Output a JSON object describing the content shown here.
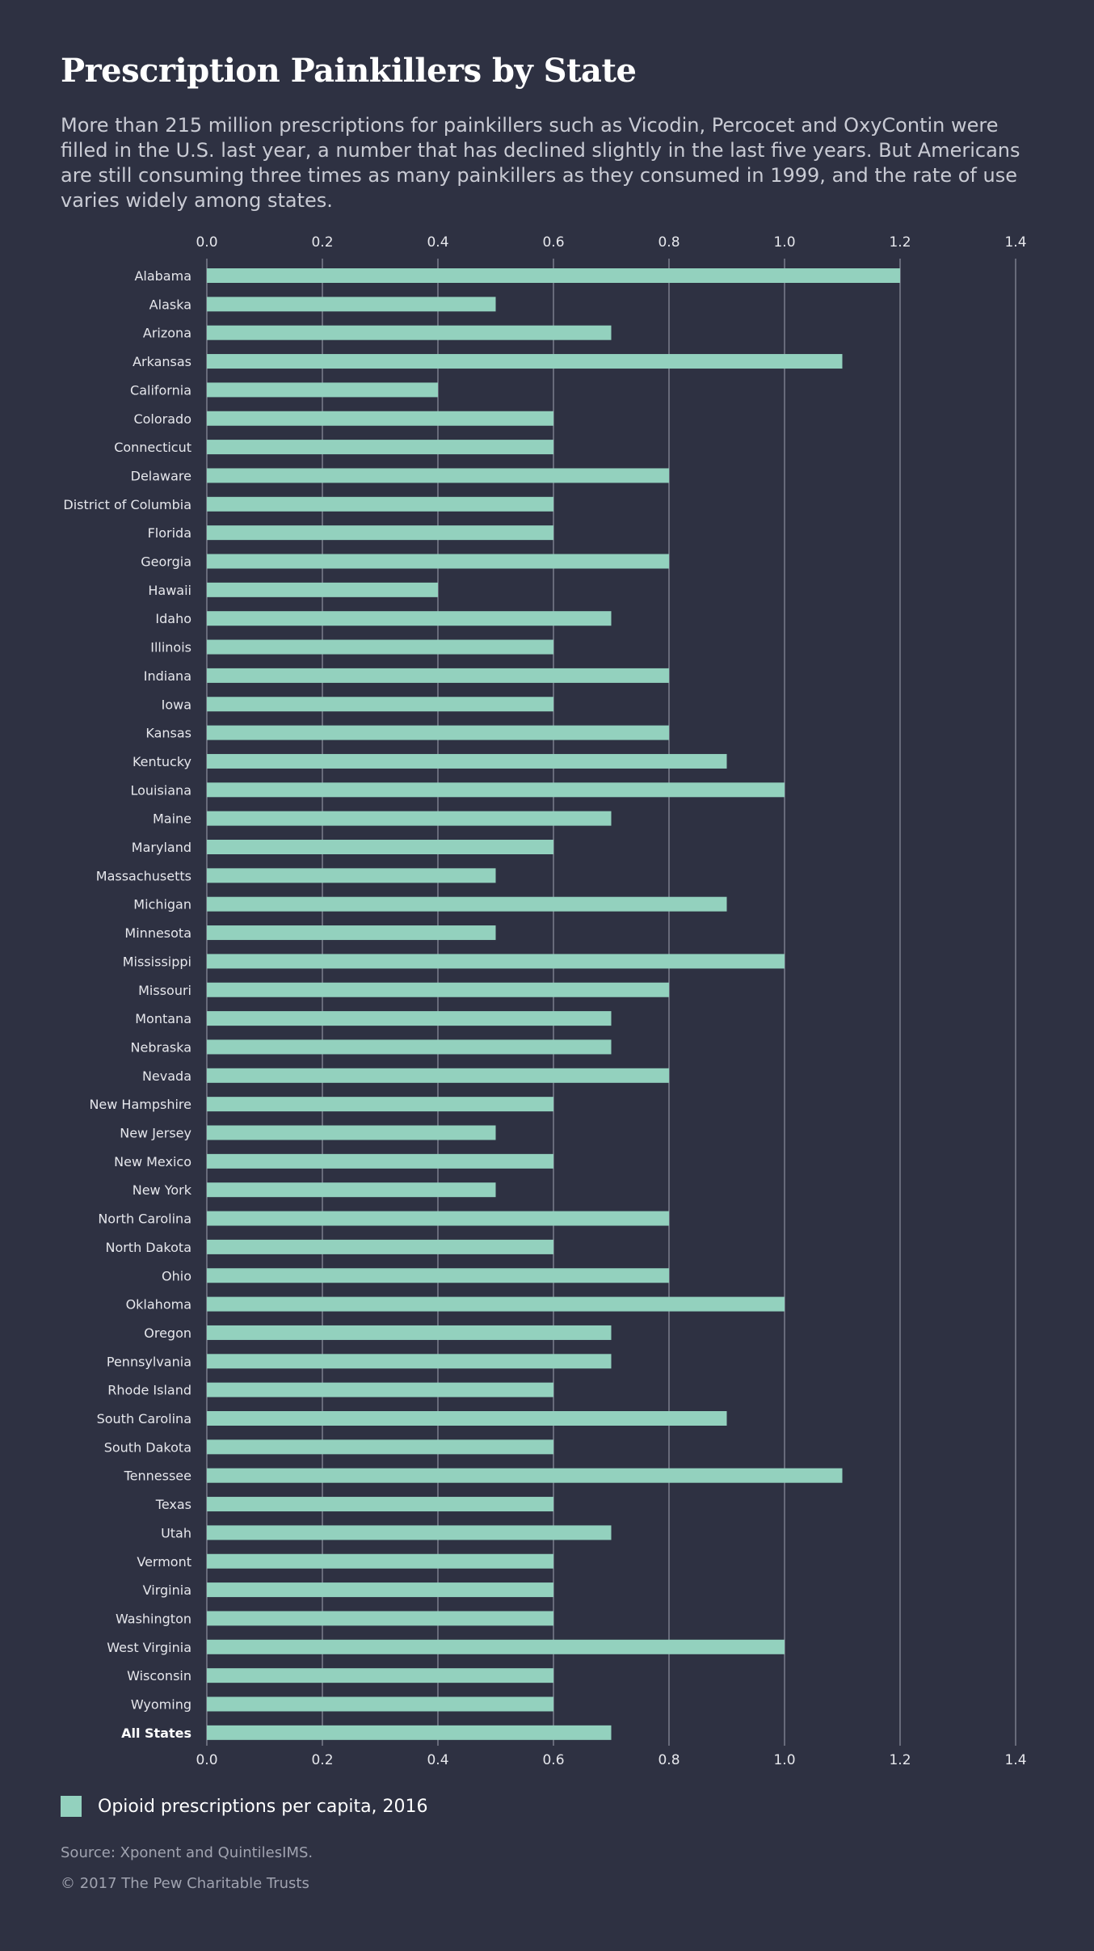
{
  "header": {
    "title": "Prescription Painkillers by State",
    "subtitle": "More than 215 million prescriptions for painkillers such as Vicodin, Percocet and OxyContin were filled in the U.S. last year, a number that has declined slightly in the last five years. But Americans are still consuming three times as many painkillers as they consumed in 1999, and the rate of use varies widely among states."
  },
  "legend": {
    "label": "Opioid prescriptions per capita, 2016",
    "color": "#93d1be"
  },
  "footer": {
    "source": "Source: Xponent and QuintilesIMS.",
    "copyright": "© 2017 The Pew Charitable Trusts"
  },
  "colors": {
    "background": "#2e3142",
    "bar": "#93d1be",
    "gridline": "#8e91a0",
    "text": "#e6e7ec"
  },
  "chart_data": {
    "type": "bar",
    "orientation": "horizontal",
    "title": "Prescription Painkillers by State",
    "xlim": [
      0,
      1.4
    ],
    "xticks": [
      "0.0",
      "0.2",
      "0.4",
      "0.6",
      "0.8",
      "1.0",
      "1.2",
      "1.4"
    ],
    "tick_positions": [
      "top",
      "bottom"
    ],
    "grid": true,
    "legend_position": "bottom-left",
    "bold_categories": [
      "All States"
    ],
    "categories": [
      "Alabama",
      "Alaska",
      "Arizona",
      "Arkansas",
      "California",
      "Colorado",
      "Connecticut",
      "Delaware",
      "District of Columbia",
      "Florida",
      "Georgia",
      "Hawaii",
      "Idaho",
      "Illinois",
      "Indiana",
      "Iowa",
      "Kansas",
      "Kentucky",
      "Louisiana",
      "Maine",
      "Maryland",
      "Massachusetts",
      "Michigan",
      "Minnesota",
      "Mississippi",
      "Missouri",
      "Montana",
      "Nebraska",
      "Nevada",
      "New Hampshire",
      "New Jersey",
      "New Mexico",
      "New York",
      "North Carolina",
      "North Dakota",
      "Ohio",
      "Oklahoma",
      "Oregon",
      "Pennsylvania",
      "Rhode Island",
      "South Carolina",
      "South Dakota",
      "Tennessee",
      "Texas",
      "Utah",
      "Vermont",
      "Virginia",
      "Washington",
      "West Virginia",
      "Wisconsin",
      "Wyoming",
      "All States"
    ],
    "series": [
      {
        "name": "Opioid prescriptions per capita, 2016",
        "values": [
          1.2,
          0.5,
          0.7,
          1.1,
          0.4,
          0.6,
          0.6,
          0.8,
          0.6,
          0.6,
          0.8,
          0.4,
          0.7,
          0.6,
          0.8,
          0.6,
          0.8,
          0.9,
          1.0,
          0.7,
          0.6,
          0.5,
          0.9,
          0.5,
          1.0,
          0.8,
          0.7,
          0.7,
          0.8,
          0.6,
          0.5,
          0.6,
          0.5,
          0.8,
          0.6,
          0.8,
          1.0,
          0.7,
          0.7,
          0.6,
          0.9,
          0.6,
          1.1,
          0.6,
          0.7,
          0.6,
          0.6,
          0.6,
          1.0,
          0.6,
          0.6,
          0.7
        ]
      }
    ]
  }
}
